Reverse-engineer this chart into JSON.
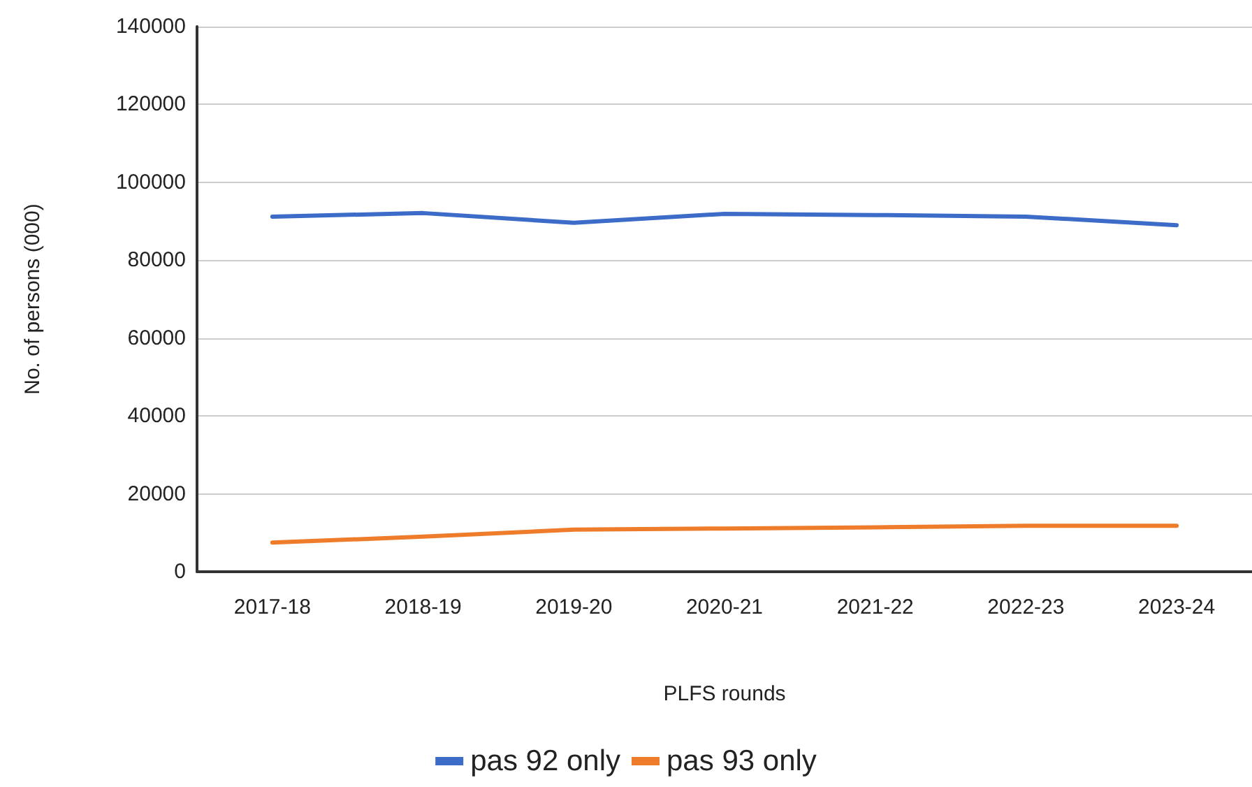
{
  "chart_data": {
    "type": "line",
    "xlabel": "PLFS rounds",
    "ylabel": "No. of persons (000)",
    "categories": [
      "2017-18",
      "2018-19",
      "2019-20",
      "2020-21",
      "2021-22",
      "2022-23",
      "2023-24"
    ],
    "series": [
      {
        "name": "pas 92 only",
        "color": "#3c6bc8",
        "values": [
          91200,
          92100,
          89600,
          91900,
          91600,
          91200,
          89000
        ]
      },
      {
        "name": "pas 93 only",
        "color": "#ee7c2a",
        "values": [
          7500,
          9000,
          10800,
          11100,
          11400,
          11800,
          11800
        ]
      }
    ],
    "ylim": [
      0,
      140000
    ],
    "yticks": [
      0,
      20000,
      40000,
      60000,
      80000,
      100000,
      120000,
      140000
    ],
    "grid": "y",
    "legend": "bottom",
    "marker": "none",
    "line_style": "solid"
  }
}
